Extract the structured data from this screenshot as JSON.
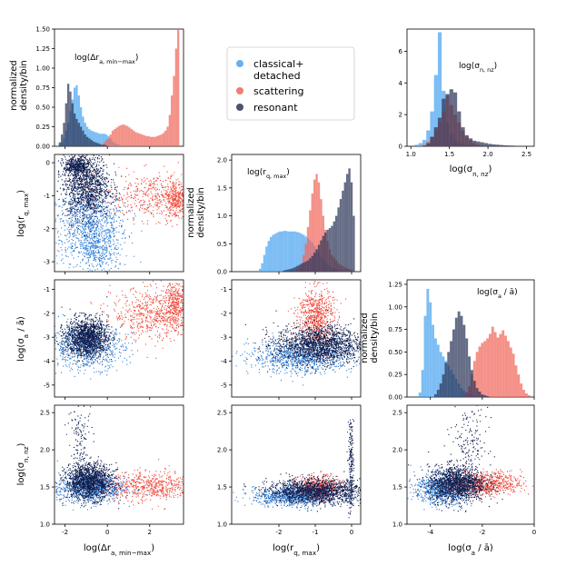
{
  "chart_data": {
    "type": "corner-plot",
    "colors": {
      "classical": "#4aa3f0",
      "scattering": "#f0665a",
      "resonant": "#2b3558",
      "scatter_classical": "#2f7fd8",
      "scatter_scattering": "#ef4a3c",
      "scatter_resonant": "#0f1d4d"
    },
    "legend": {
      "position": "top-center",
      "entries": [
        {
          "key": "classical",
          "label_lines": [
            "classical+",
            "detached"
          ]
        },
        {
          "key": "scattering",
          "label_lines": [
            "scattering"
          ]
        },
        {
          "key": "resonant",
          "label_lines": [
            "resonant"
          ]
        }
      ]
    },
    "density_ylabel_lines": [
      "normalized",
      "density/bin"
    ],
    "variables": [
      {
        "key": "dr",
        "axis_label": "log(Δr_a,min−max)",
        "title": "log(Δr_a,min−max)"
      },
      {
        "key": "rq",
        "axis_label": "log(r_q,max)",
        "title": "log(r_q,max)"
      },
      {
        "key": "sa",
        "axis_label": "log(σ_a / ā)",
        "title": "log(σ_a / ā)"
      },
      {
        "key": "sn",
        "axis_label": "log(σ_n,nz)",
        "title": "log(σ_n,nz)"
      }
    ],
    "labels": {
      "dr_x": "log(Δr",
      "dr_sub": "a, min−max",
      "rq_x": "log(r",
      "rq_sub": "q, max",
      "sa_x": "log(σ",
      "sa_sub": "a",
      "sa_tail": " / ā)",
      "sn_x": "log(σ",
      "sn_sub": "n, nz",
      "close": ")"
    },
    "ranges": {
      "dr": [
        -2.5,
        3.6
      ],
      "rq": [
        -3.3,
        0.25
      ],
      "sa": [
        -5.5,
        -0.6
      ],
      "sn": [
        1.0,
        2.6
      ],
      "sa_diag_x": [
        -4.9,
        0.0
      ],
      "sn_diag_x": [
        0.95,
        2.6
      ]
    },
    "ticks": {
      "dr_x": [
        "-2",
        "0",
        "2"
      ],
      "rq_x": [
        "-2",
        "-1",
        "0"
      ],
      "sa_x": [
        "-4",
        "-2",
        "0"
      ],
      "sn_x": [
        "1.0",
        "1.5",
        "2.0",
        "2.5"
      ],
      "rq_y": [
        "0",
        "-1",
        "-2",
        "-3"
      ],
      "sa_y": [
        "-1",
        "-2",
        "-3",
        "-4",
        "-5"
      ],
      "sn_y": [
        "2.5",
        "2.0",
        "1.5",
        "1.0"
      ]
    },
    "histograms": [
      {
        "var": "dr",
        "ylim": [
          0,
          1.5
        ],
        "yticks": [
          "0.00",
          "0.25",
          "0.50",
          "0.75",
          "1.00",
          "1.25",
          "1.50"
        ],
        "bin_start": -2.3,
        "bin_width": 0.1,
        "series": {
          "classical": [
            0.02,
            0.05,
            0.1,
            0.2,
            0.3,
            0.45,
            0.6,
            0.75,
            0.78,
            0.65,
            0.5,
            0.38,
            0.3,
            0.25,
            0.22,
            0.2,
            0.19,
            0.18,
            0.17,
            0.16,
            0.16,
            0.16,
            0.15,
            0.13,
            0.1,
            0.06,
            0.04,
            0.03,
            0.02,
            0.01,
            0,
            0,
            0,
            0,
            0,
            0,
            0,
            0,
            0,
            0,
            0,
            0,
            0,
            0,
            0,
            0,
            0,
            0,
            0,
            0,
            0,
            0,
            0,
            0,
            0,
            0,
            0
          ],
          "scattering": [
            0,
            0,
            0,
            0,
            0,
            0,
            0,
            0,
            0,
            0,
            0,
            0,
            0,
            0,
            0,
            0,
            0,
            0,
            0,
            0,
            0,
            0.05,
            0.08,
            0.1,
            0.15,
            0.2,
            0.22,
            0.24,
            0.26,
            0.27,
            0.28,
            0.27,
            0.26,
            0.24,
            0.22,
            0.2,
            0.18,
            0.17,
            0.16,
            0.15,
            0.14,
            0.13,
            0.13,
            0.12,
            0.12,
            0.12,
            0.13,
            0.14,
            0.15,
            0.17,
            0.2,
            0.25,
            0.4,
            0.65,
            0.9,
            1.25,
            1.5
          ],
          "resonant": [
            0.05,
            0.15,
            0.3,
            0.55,
            0.8,
            0.7,
            0.55,
            0.42,
            0.35,
            0.3,
            0.25,
            0.2,
            0.15,
            0.12,
            0.1,
            0.08,
            0.06,
            0.05,
            0.04,
            0.03,
            0.02,
            0.02,
            0.01,
            0,
            0,
            0,
            0,
            0,
            0,
            0,
            0,
            0,
            0,
            0,
            0,
            0,
            0,
            0,
            0,
            0,
            0,
            0,
            0,
            0,
            0,
            0,
            0,
            0,
            0,
            0,
            0,
            0,
            0,
            0,
            0,
            0,
            0
          ]
        }
      },
      {
        "var": "rq",
        "ylim": [
          0,
          2.1
        ],
        "yticks": [
          "0.0",
          "0.5",
          "1.0",
          "1.5",
          "2.0"
        ],
        "bin_start": -2.55,
        "bin_width": 0.06,
        "series": {
          "classical": [
            0.05,
            0.15,
            0.3,
            0.45,
            0.55,
            0.62,
            0.66,
            0.68,
            0.7,
            0.72,
            0.72,
            0.73,
            0.73,
            0.72,
            0.72,
            0.72,
            0.72,
            0.71,
            0.7,
            0.68,
            0.66,
            0.63,
            0.6,
            0.56,
            0.52,
            0.46,
            0.4,
            0.34,
            0.28,
            0.22,
            0.18,
            0.14,
            0.1,
            0.08,
            0.06,
            0.05,
            0.04,
            0.03,
            0.02,
            0.01,
            0.01,
            0,
            0,
            0
          ],
          "scattering": [
            0,
            0,
            0,
            0,
            0,
            0,
            0,
            0,
            0,
            0,
            0,
            0,
            0,
            0,
            0,
            0,
            0.02,
            0.04,
            0.08,
            0.15,
            0.3,
            0.5,
            0.8,
            1.1,
            1.4,
            1.65,
            1.75,
            1.6,
            1.3,
            1.0,
            0.75,
            0.55,
            0.4,
            0.3,
            0.25,
            0.2,
            0.15,
            0.12,
            0.1,
            0.08,
            0.06,
            0.05,
            0.03,
            0.02
          ],
          "resonant": [
            0,
            0,
            0,
            0,
            0,
            0,
            0,
            0,
            0,
            0,
            0,
            0.02,
            0.03,
            0.04,
            0.05,
            0.06,
            0.08,
            0.1,
            0.12,
            0.14,
            0.16,
            0.18,
            0.2,
            0.24,
            0.28,
            0.34,
            0.4,
            0.48,
            0.56,
            0.64,
            0.7,
            0.75,
            0.78,
            0.82,
            0.9,
            1.0,
            1.15,
            1.3,
            1.45,
            1.6,
            1.75,
            1.85,
            1.6,
            1.0
          ]
        }
      },
      {
        "var": "sa",
        "ylim": [
          0,
          1.3
        ],
        "xvar": "sa_diag_x",
        "yticks": [
          "0.00",
          "0.25",
          "0.50",
          "0.75",
          "1.00",
          "1.25"
        ],
        "bin_start": -4.45,
        "bin_width": 0.1,
        "series": {
          "classical": [
            0.05,
            0.3,
            0.9,
            1.2,
            1.05,
            0.8,
            0.65,
            0.58,
            0.5,
            0.45,
            0.4,
            0.35,
            0.3,
            0.25,
            0.2,
            0.15,
            0.1,
            0.07,
            0.05,
            0.03,
            0.02,
            0.01,
            0,
            0,
            0,
            0,
            0,
            0,
            0,
            0,
            0,
            0,
            0,
            0,
            0,
            0,
            0,
            0,
            0,
            0,
            0,
            0,
            0
          ],
          "scattering": [
            0,
            0,
            0,
            0,
            0,
            0,
            0,
            0,
            0,
            0,
            0,
            0,
            0,
            0,
            0,
            0,
            0,
            0.02,
            0.05,
            0.12,
            0.25,
            0.4,
            0.5,
            0.56,
            0.6,
            0.62,
            0.65,
            0.7,
            0.78,
            0.72,
            0.66,
            0.7,
            0.74,
            0.68,
            0.62,
            0.55,
            0.48,
            0.35,
            0.25,
            0.15,
            0.08,
            0.04,
            0.02
          ],
          "resonant": [
            0,
            0,
            0,
            0,
            0,
            0,
            0.03,
            0.08,
            0.15,
            0.25,
            0.38,
            0.5,
            0.62,
            0.75,
            0.88,
            0.95,
            0.9,
            0.8,
            0.65,
            0.45,
            0.3,
            0.18,
            0.1,
            0.06,
            0.03,
            0.02,
            0.01,
            0,
            0,
            0,
            0,
            0,
            0,
            0,
            0,
            0,
            0,
            0,
            0,
            0,
            0,
            0,
            0
          ]
        }
      },
      {
        "var": "sn",
        "ylim": [
          0,
          7.4
        ],
        "xvar": "sn_diag_x",
        "yticks": [
          "0",
          "2",
          "4",
          "6"
        ],
        "bin_start": 1.05,
        "bin_width": 0.05,
        "series": {
          "classical": [
            0.1,
            0.2,
            0.4,
            1.0,
            2.2,
            4.5,
            7.2,
            3.5,
            1.5,
            0.8,
            0.4,
            0.25,
            0.15,
            0.1,
            0.08,
            0.06,
            0.05,
            0.04,
            0.03,
            0.02,
            0.02,
            0.01,
            0.01,
            0.01,
            0.01,
            0,
            0,
            0,
            0,
            0,
            0
          ],
          "scattering": [
            0,
            0.05,
            0.1,
            0.3,
            0.6,
            1.0,
            1.5,
            2.2,
            3.2,
            2.6,
            2.0,
            1.5,
            1.0,
            0.6,
            0.4,
            0.2,
            0.1,
            0.05,
            0.02,
            0,
            0,
            0,
            0,
            0,
            0,
            0,
            0,
            0,
            0,
            0,
            0
          ],
          "resonant": [
            0,
            0,
            0.05,
            0.2,
            0.6,
            1.2,
            1.8,
            3.0,
            3.3,
            3.6,
            3.4,
            2.2,
            1.2,
            0.7,
            0.5,
            0.35,
            0.3,
            0.25,
            0.2,
            0.15,
            0.12,
            0.1,
            0.08,
            0.06,
            0.05,
            0.04,
            0.03,
            0.02,
            0.02,
            0.01,
            0.01
          ]
        }
      }
    ],
    "clusters": {
      "rq_vs_dr": [
        {
          "set": "classical",
          "n": 900,
          "x": [
            -0.9,
            0.9
          ],
          "y": [
            -1.9,
            0.55
          ]
        },
        {
          "set": "classical",
          "n": 300,
          "x": [
            -0.5,
            0.5
          ],
          "y": [
            -2.7,
            0.35
          ]
        },
        {
          "set": "scattering",
          "n": 500,
          "x": [
            2.3,
            1.2
          ],
          "y": [
            -1.0,
            0.35
          ]
        },
        {
          "set": "scattering",
          "n": 250,
          "x": [
            3.2,
            0.25
          ],
          "y": [
            -1.1,
            0.3
          ]
        },
        {
          "set": "resonant",
          "n": 1200,
          "x": [
            -1.0,
            0.55
          ],
          "y": [
            -0.7,
            0.5
          ]
        },
        {
          "set": "resonant",
          "n": 400,
          "x": [
            -1.5,
            0.3
          ],
          "y": [
            -0.1,
            0.15
          ]
        }
      ],
      "sa_vs_dr": [
        {
          "set": "classical",
          "n": 700,
          "x": [
            -1.0,
            0.9
          ],
          "y": [
            -3.4,
            0.45
          ]
        },
        {
          "set": "scattering",
          "n": 600,
          "x": [
            2.2,
            1.0
          ],
          "y": [
            -2.0,
            0.55
          ]
        },
        {
          "set": "scattering",
          "n": 300,
          "x": [
            3.2,
            0.25
          ],
          "y": [
            -1.6,
            0.5
          ]
        },
        {
          "set": "resonant",
          "n": 1400,
          "x": [
            -1.0,
            0.5
          ],
          "y": [
            -3.0,
            0.4
          ]
        }
      ],
      "sn_vs_dr": [
        {
          "set": "classical",
          "n": 900,
          "x": [
            -0.8,
            0.8
          ],
          "y": [
            1.5,
            0.1
          ]
        },
        {
          "set": "scattering",
          "n": 600,
          "x": [
            2.0,
            1.1
          ],
          "y": [
            1.52,
            0.1
          ]
        },
        {
          "set": "resonant",
          "n": 1400,
          "x": [
            -0.9,
            0.55
          ],
          "y": [
            1.58,
            0.12
          ]
        },
        {
          "set": "resonant",
          "n": 120,
          "x": [
            -1.3,
            0.3
          ],
          "y": [
            2.15,
            0.25
          ]
        }
      ],
      "sa_vs_rq": [
        {
          "set": "classical",
          "n": 900,
          "x": [
            -1.4,
            0.7
          ],
          "y": [
            -3.8,
            0.35
          ]
        },
        {
          "set": "scattering",
          "n": 700,
          "x": [
            -1.0,
            0.25
          ],
          "y": [
            -2.1,
            0.6
          ]
        },
        {
          "set": "resonant",
          "n": 1600,
          "x": [
            -0.9,
            0.6
          ],
          "y": [
            -3.3,
            0.4
          ]
        }
      ],
      "sn_vs_rq": [
        {
          "set": "classical",
          "n": 900,
          "x": [
            -1.5,
            0.6
          ],
          "y": [
            1.38,
            0.06
          ]
        },
        {
          "set": "scattering",
          "n": 500,
          "x": [
            -0.9,
            0.3
          ],
          "y": [
            1.5,
            0.08
          ]
        },
        {
          "set": "resonant",
          "n": 1500,
          "x": [
            -1.0,
            0.65
          ],
          "y": [
            1.45,
            0.08
          ]
        },
        {
          "set": "resonant",
          "n": 200,
          "x": [
            -0.03,
            0.04
          ],
          "y": [
            1.8,
            0.35
          ]
        }
      ],
      "sn_vs_sa": [
        {
          "set": "classical",
          "n": 800,
          "x": [
            -3.6,
            0.5
          ],
          "y": [
            1.48,
            0.1
          ]
        },
        {
          "set": "scattering",
          "n": 700,
          "x": [
            -1.9,
            0.7
          ],
          "y": [
            1.55,
            0.08
          ]
        },
        {
          "set": "resonant",
          "n": 1400,
          "x": [
            -3.0,
            0.55
          ],
          "y": [
            1.55,
            0.12
          ]
        },
        {
          "set": "resonant",
          "n": 150,
          "x": [
            -2.5,
            0.35
          ],
          "y": [
            2.1,
            0.25
          ]
        }
      ]
    }
  }
}
